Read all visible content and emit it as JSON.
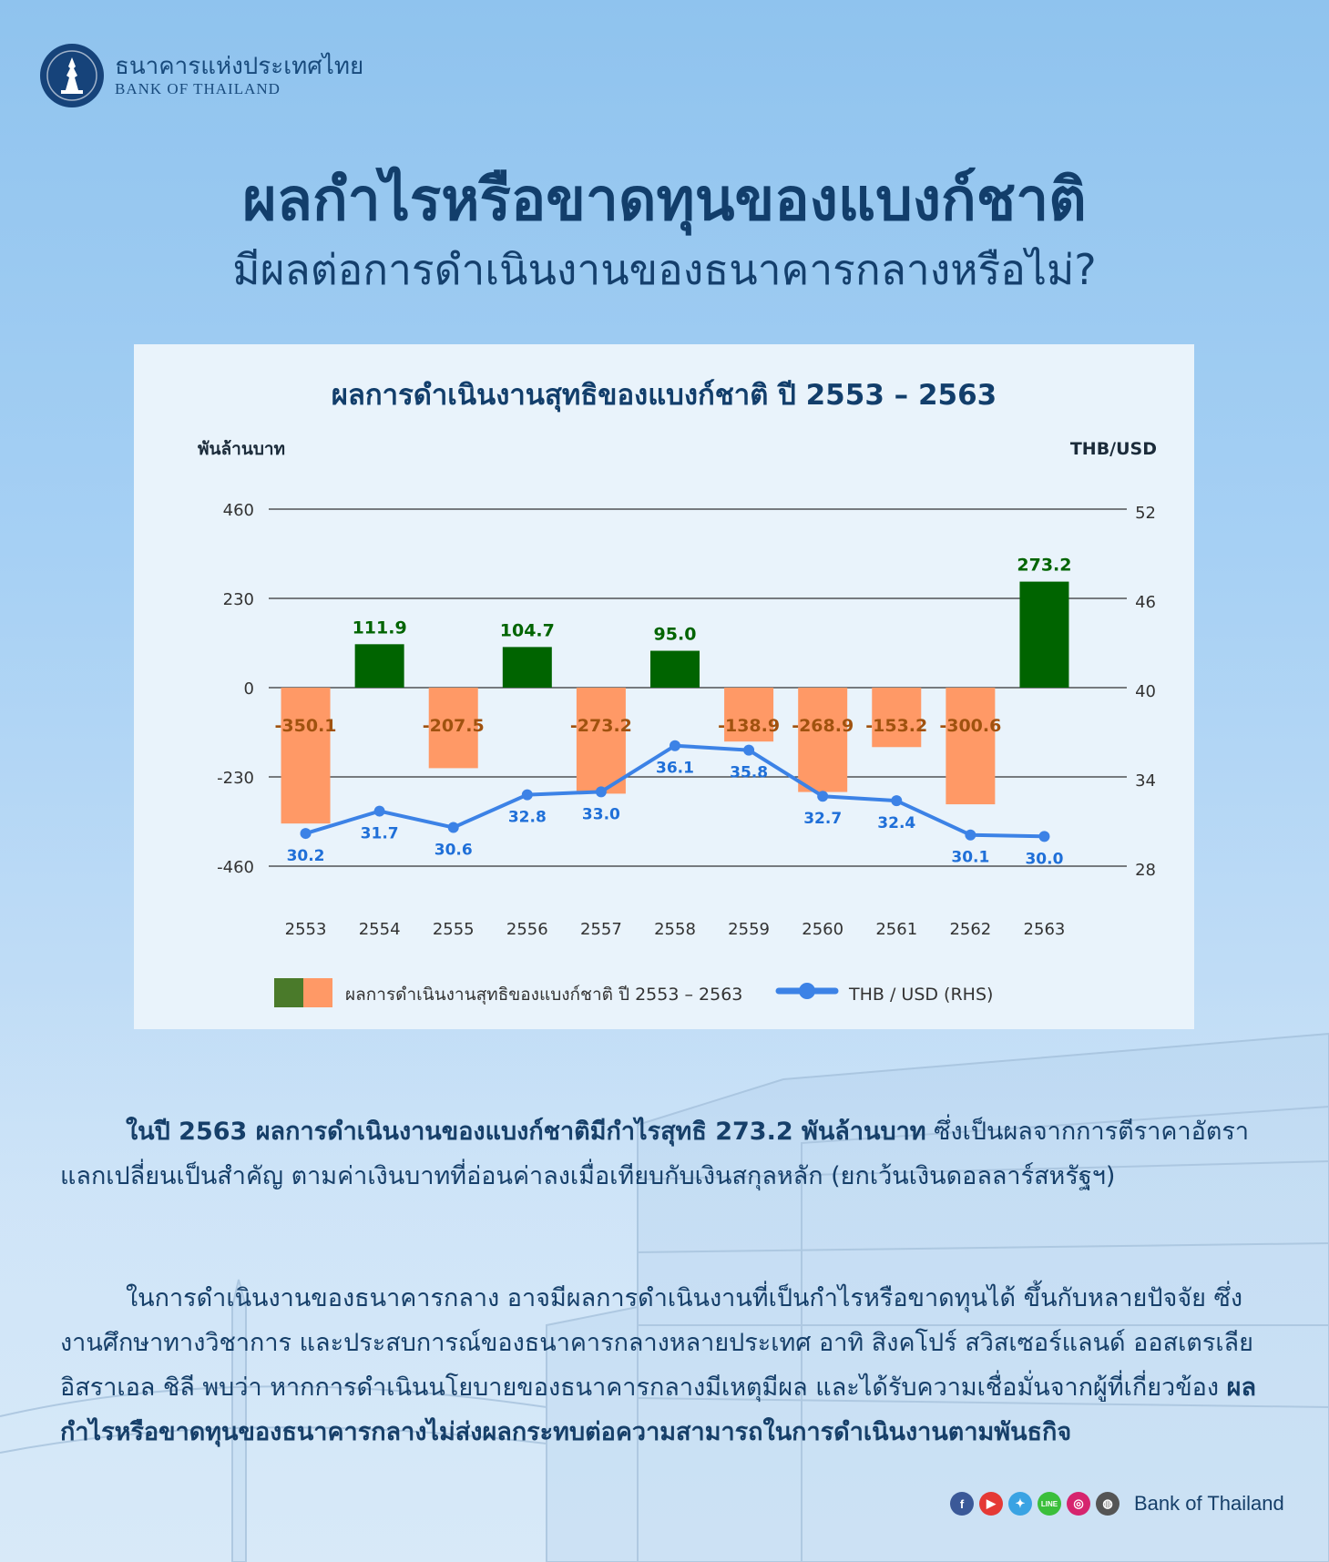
{
  "logo": {
    "thai": "ธนาคารแห่งประเทศไทย",
    "english": "BANK OF THAILAND"
  },
  "headline": {
    "line1": "ผลกำไรหรือขาดทุนของแบงก์ชาติ",
    "line2": "มีผลต่อการดำเนินงานของธนาคารกลางหรือไม่?"
  },
  "colors": {
    "profit": "#006400",
    "loss": "#ff9966",
    "line": "#3c82e6",
    "title": "#123e6b",
    "loss_label": "#a0520f",
    "line_label": "#1f6fd8"
  },
  "chart_data": {
    "type": "bar",
    "title": "ผลการดำเนินงานสุทธิของแบงก์ชาติ ปี 2553 – 2563",
    "ylabel": "พันล้านบาท",
    "y2label": "THB/USD",
    "categories": [
      "2553",
      "2554",
      "2555",
      "2556",
      "2557",
      "2558",
      "2559",
      "2560",
      "2561",
      "2562",
      "2563"
    ],
    "ylim": [
      -460,
      460
    ],
    "yticks": [
      460,
      230,
      0,
      -230,
      -460
    ],
    "y2lim": [
      28,
      52
    ],
    "y2ticks": [
      52,
      46,
      40,
      34,
      28
    ],
    "grid": true,
    "legend_position": "bottom",
    "series": [
      {
        "name": "ผลการดำเนินงานสุทธิของแบงก์ชาติ ปี 2553 – 2563",
        "type": "bar",
        "values": [
          -350.1,
          111.9,
          -207.5,
          104.7,
          -273.2,
          95.0,
          -138.9,
          -268.9,
          -153.2,
          -300.6,
          273.2
        ],
        "labels": [
          "-350.1",
          "111.9",
          "-207.5",
          "104.7",
          "-273.2",
          "95.0",
          "-138.9",
          "-268.9",
          "-153.2",
          "-300.6",
          "273.2"
        ]
      },
      {
        "name": "THB / USD (RHS)",
        "type": "line",
        "axis": "right",
        "values": [
          30.2,
          31.7,
          30.6,
          32.8,
          33.0,
          36.1,
          35.8,
          32.7,
          32.4,
          30.1,
          30.0
        ],
        "labels": [
          "30.2",
          "31.7",
          "30.6",
          "32.8",
          "33.0",
          "36.1",
          "35.8",
          "32.7",
          "32.4",
          "30.1",
          "30.0"
        ]
      }
    ]
  },
  "paragraphs": {
    "p1_bold": "ในปี 2563 ผลการดำเนินงานของแบงก์ชาติมีกำไรสุทธิ 273.2 พันล้านบาท",
    "p1_rest": " ซึ่งเป็นผลจากการตีราคาอัตราแลกเปลี่ยนเป็นสำคัญ ตามค่าเงินบาทที่อ่อนค่าลงเมื่อเทียบกับเงินสกุลหลัก (ยกเว้นเงินดอลลาร์สหรัฐฯ)",
    "p2_normal": "ในการดำเนินงานของธนาคารกลาง อาจมีผลการดำเนินงานที่เป็นกำไรหรือขาดทุนได้ ขึ้นกับหลายปัจจัย ซึ่งงานศึกษาทางวิชาการ และประสบการณ์ของธนาคารกลางหลายประเทศ อาทิ สิงคโปร์ สวิสเซอร์แลนด์ ออสเตรเลีย อิสราเอล ชิลี พบว่า หากการดำเนินนโยบายของธนาคารกลางมีเหตุมีผล และได้รับความเชื่อมั่นจากผู้ที่เกี่ยวข้อง ",
    "p2_bold": "ผลกำไรหรือขาดทุนของธนาคารกลางไม่ส่งผลกระทบต่อความสามารถในการดำเนินงานตามพันธกิจ"
  },
  "footer": {
    "label": "Bank of Thailand",
    "icons": [
      "facebook-icon",
      "youtube-icon",
      "twitter-icon",
      "line-icon",
      "instagram-icon",
      "web-icon"
    ],
    "line_badge": "LINE"
  }
}
